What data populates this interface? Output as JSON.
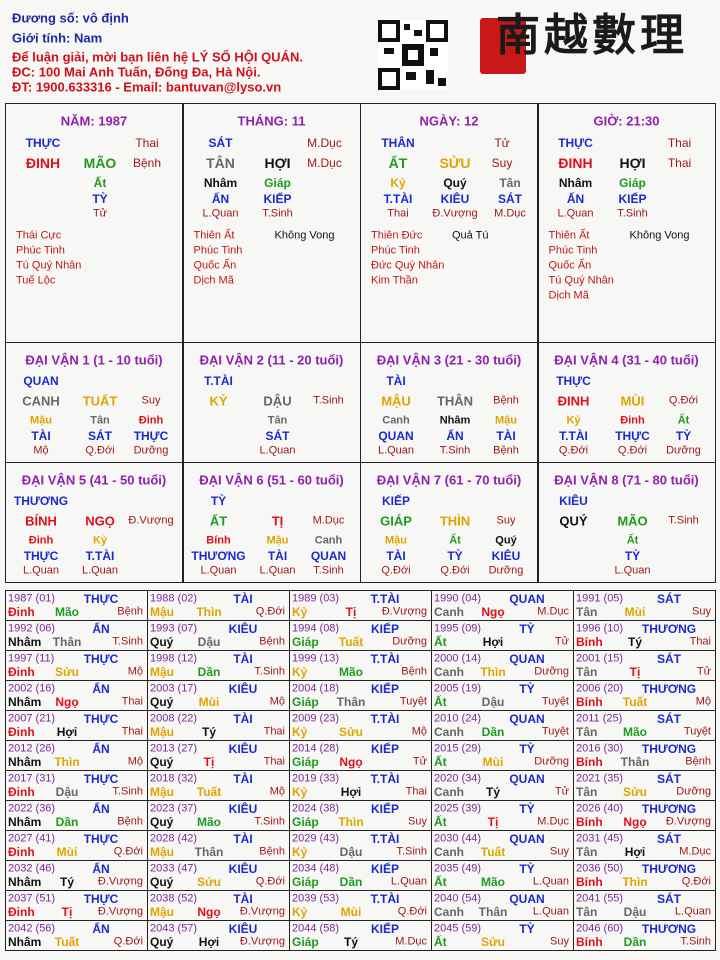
{
  "header": {
    "lines": [
      "Đương số: vô định",
      "Giới tính:   Nam",
      "Để luận giải, mời bạn liên hệ LÝ SỐ HỘI QUÁN.",
      "ĐC: 100 Mai Anh Tuấn, Đống Đa, Hà Nội.",
      "ĐT: 1900.633316 - Email: bantuvan@lyso.vn"
    ],
    "line_colors": [
      "#1a2aa0",
      "#1a2aa0",
      "#d0101a",
      "#d0101a",
      "#d0101a"
    ],
    "logo": "南越數理"
  },
  "colors": {
    "giáp": "#1e9a1e",
    "ất": "#1e9a1e",
    "dần": "#1e9a1e",
    "mão": "#1e9a1e",
    "bính": "#e0101a",
    "đinh": "#e0101a",
    "tị": "#e0101a",
    "ngọ": "#e0101a",
    "mậu": "#e0a400",
    "kỷ": "#e0a400",
    "thìn": "#e0a400",
    "tuất": "#e0a400",
    "sửu": "#e0a400",
    "mùi": "#e0a400",
    "canh": "#666666",
    "tân": "#666666",
    "thân": "#666666",
    "dậu": "#666666",
    "nhâm": "#111111",
    "quý": "#111111",
    "tý": "#111111",
    "hợi": "#111111"
  },
  "pillars": [
    {
      "title": "NĂM: 1987",
      "god": "THỰC",
      "god_state": "Thai",
      "stem": "ĐINH",
      "branch": "MÃO",
      "branch_state": "Bệnh",
      "hidden": [
        {
          "stem": "Ất",
          "god": "TỲ",
          "state": "Tử"
        }
      ],
      "stars": [
        "Thái Cực",
        "Phúc Tinh",
        "Tú Quý Nhân",
        "Tuế Lộc"
      ],
      "stars_right": []
    },
    {
      "title": "THÁNG: 11",
      "god": "SÁT",
      "god_state": "M.Dục",
      "stem": "TÂN",
      "branch": "HỢI",
      "branch_state": "M.Dục",
      "hidden": [
        {
          "stem": "Nhâm",
          "god": "ẤN",
          "state": "L.Quan"
        },
        {
          "stem": "Giáp",
          "god": "KIẾP",
          "state": "T.Sinh"
        }
      ],
      "stars": [
        "Thiên Ất",
        "Phúc Tinh",
        "Quốc Ấn",
        "Dịch Mã"
      ],
      "stars_right": [
        "Không Vong"
      ]
    },
    {
      "title": "NGÀY: 12",
      "god": "THÂN",
      "god_state": "Tử",
      "stem": "ẤT",
      "branch": "SỬU",
      "branch_state": "Suy",
      "hidden": [
        {
          "stem": "Kỷ",
          "god": "T.TÀI",
          "state": "Thai"
        },
        {
          "stem": "Quý",
          "god": "KIÊU",
          "state": "Đ.Vượng"
        },
        {
          "stem": "Tân",
          "god": "SÁT",
          "state": "M.Dục"
        }
      ],
      "stars": [
        "Thiên Đức",
        "Phúc Tinh",
        "Đức Quý Nhân",
        "Kim Thần"
      ],
      "stars_right": [
        "Quả Tú"
      ]
    },
    {
      "title": "GIỜ: 21:30",
      "god": "THỰC",
      "god_state": "Thai",
      "stem": "ĐINH",
      "branch": "HỢI",
      "branch_state": "Thai",
      "hidden": [
        {
          "stem": "Nhâm",
          "god": "ẤN",
          "state": "L.Quan"
        },
        {
          "stem": "Giáp",
          "god": "KIẾP",
          "state": "T.Sinh"
        }
      ],
      "stars": [
        "Thiên Ất",
        "Phúc Tinh",
        "Quốc Ấn",
        "Tú Quý Nhân",
        "Dịch Mã"
      ],
      "stars_right": [
        "Không Vong"
      ]
    }
  ],
  "dai_van": [
    {
      "title": "ĐẠI VẬN 1 (1 - 10 tuổi)",
      "god": "QUAN",
      "stem": "CANH",
      "branch": "TUẤT",
      "state": "Suy",
      "hidden": [
        {
          "stem": "Mậu",
          "god": "TÀI",
          "state": "Mộ"
        },
        {
          "stem": "Tân",
          "god": "SÁT",
          "state": "Q.Đới"
        },
        {
          "stem": "Đinh",
          "god": "THỰC",
          "state": "Dưỡng"
        }
      ]
    },
    {
      "title": "ĐẠI VẬN 2 (11 - 20 tuổi)",
      "god": "T.TÀI",
      "stem": "KỶ",
      "branch": "DẬU",
      "state": "T.Sinh",
      "hidden": [
        {
          "stem": "Tân",
          "god": "SÁT",
          "state": "L.Quan"
        }
      ]
    },
    {
      "title": "ĐẠI VẬN 3 (21 - 30 tuổi)",
      "god": "TÀI",
      "stem": "MẬU",
      "branch": "THÂN",
      "state": "Bệnh",
      "hidden": [
        {
          "stem": "Canh",
          "god": "QUAN",
          "state": "L.Quan"
        },
        {
          "stem": "Nhâm",
          "god": "ẤN",
          "state": "T.Sinh"
        },
        {
          "stem": "Mậu",
          "god": "TÀI",
          "state": "Bệnh"
        }
      ]
    },
    {
      "title": "ĐẠI VẬN 4 (31 - 40 tuổi)",
      "god": "THỰC",
      "stem": "ĐINH",
      "branch": "MÙI",
      "state": "Q.Đới",
      "hidden": [
        {
          "stem": "Kỷ",
          "god": "T.TÀI",
          "state": "Q.Đới"
        },
        {
          "stem": "Đinh",
          "god": "THỰC",
          "state": "Q.Đới"
        },
        {
          "stem": "Ất",
          "god": "TỲ",
          "state": "Dưỡng"
        }
      ]
    },
    {
      "title": "ĐẠI VẬN 5 (41 - 50 tuổi)",
      "god": "THƯƠNG",
      "stem": "BÍNH",
      "branch": "NGỌ",
      "state": "Đ.Vượng",
      "hidden": [
        {
          "stem": "Đinh",
          "god": "THỰC",
          "state": "L.Quan"
        },
        {
          "stem": "Kỷ",
          "god": "T.TÀI",
          "state": "L.Quan"
        }
      ]
    },
    {
      "title": "ĐẠI VẬN 6 (51 - 60 tuổi)",
      "god": "TỲ",
      "stem": "ẤT",
      "branch": "TỊ",
      "state": "M.Dục",
      "hidden": [
        {
          "stem": "Bính",
          "god": "THƯƠNG",
          "state": "L.Quan"
        },
        {
          "stem": "Mậu",
          "god": "TÀI",
          "state": "L.Quan"
        },
        {
          "stem": "Canh",
          "god": "QUAN",
          "state": "T.Sinh"
        }
      ]
    },
    {
      "title": "ĐẠI VẬN 7 (61 - 70 tuổi)",
      "god": "KIẾP",
      "stem": "GIÁP",
      "branch": "THÌN",
      "state": "Suy",
      "hidden": [
        {
          "stem": "Mậu",
          "god": "TÀI",
          "state": "Q.Đới"
        },
        {
          "stem": "Ất",
          "god": "TỲ",
          "state": "Q.Đới"
        },
        {
          "stem": "Quý",
          "god": "KIÊU",
          "state": "Dưỡng"
        }
      ]
    },
    {
      "title": "ĐẠI VẬN 8 (71 - 80 tuổi)",
      "god": "KIÊU",
      "stem": "QUÝ",
      "branch": "MÃO",
      "state": "T.Sinh",
      "hidden": [
        {
          "stem": "Ất",
          "god": "TỲ",
          "state": "L.Quan"
        }
      ]
    }
  ],
  "years": [
    {
      "label": "1987 (01)",
      "god": "THỰC",
      "stem": "Đinh",
      "branch": "Mão",
      "state": "Bệnh"
    },
    {
      "label": "1988 (02)",
      "god": "TÀI",
      "stem": "Mậu",
      "branch": "Thìn",
      "state": "Q.Đới"
    },
    {
      "label": "1989 (03)",
      "god": "T.TÀI",
      "stem": "Kỷ",
      "branch": "Tị",
      "state": "Đ.Vượng"
    },
    {
      "label": "1990 (04)",
      "god": "QUAN",
      "stem": "Canh",
      "branch": "Ngọ",
      "state": "M.Dục"
    },
    {
      "label": "1991 (05)",
      "god": "SÁT",
      "stem": "Tân",
      "branch": "Mùi",
      "state": "Suy"
    },
    {
      "label": "1992 (06)",
      "god": "ẤN",
      "stem": "Nhâm",
      "branch": "Thân",
      "state": "T.Sinh"
    },
    {
      "label": "1993 (07)",
      "god": "KIÊU",
      "stem": "Quý",
      "branch": "Dậu",
      "state": "Bệnh"
    },
    {
      "label": "1994 (08)",
      "god": "KIẾP",
      "stem": "Giáp",
      "branch": "Tuất",
      "state": "Dưỡng"
    },
    {
      "label": "1995 (09)",
      "god": "TỲ",
      "stem": "Ất",
      "branch": "Hợi",
      "state": "Tử"
    },
    {
      "label": "1996 (10)",
      "god": "THƯƠNG",
      "stem": "Bính",
      "branch": "Tý",
      "state": "Thai"
    },
    {
      "label": "1997 (11)",
      "god": "THỰC",
      "stem": "Đinh",
      "branch": "Sửu",
      "state": "Mộ"
    },
    {
      "label": "1998 (12)",
      "god": "TÀI",
      "stem": "Mậu",
      "branch": "Dần",
      "state": "T.Sinh"
    },
    {
      "label": "1999 (13)",
      "god": "T.TÀI",
      "stem": "Kỷ",
      "branch": "Mão",
      "state": "Bệnh"
    },
    {
      "label": "2000 (14)",
      "god": "QUAN",
      "stem": "Canh",
      "branch": "Thìn",
      "state": "Dưỡng"
    },
    {
      "label": "2001 (15)",
      "god": "SÁT",
      "stem": "Tân",
      "branch": "Tị",
      "state": "Tử"
    },
    {
      "label": "2002 (16)",
      "god": "ẤN",
      "stem": "Nhâm",
      "branch": "Ngọ",
      "state": "Thai"
    },
    {
      "label": "2003 (17)",
      "god": "KIÊU",
      "stem": "Quý",
      "branch": "Mùi",
      "state": "Mộ"
    },
    {
      "label": "2004 (18)",
      "god": "KIẾP",
      "stem": "Giáp",
      "branch": "Thân",
      "state": "Tuyệt"
    },
    {
      "label": "2005 (19)",
      "god": "TỲ",
      "stem": "Ất",
      "branch": "Dậu",
      "state": "Tuyệt"
    },
    {
      "label": "2006 (20)",
      "god": "THƯƠNG",
      "stem": "Bính",
      "branch": "Tuất",
      "state": "Mộ"
    },
    {
      "label": "2007 (21)",
      "god": "THỰC",
      "stem": "Đinh",
      "branch": "Hợi",
      "state": "Thai"
    },
    {
      "label": "2008 (22)",
      "god": "TÀI",
      "stem": "Mậu",
      "branch": "Tý",
      "state": "Thai"
    },
    {
      "label": "2009 (23)",
      "god": "T.TÀI",
      "stem": "Kỷ",
      "branch": "Sửu",
      "state": "Mộ"
    },
    {
      "label": "2010 (24)",
      "god": "QUAN",
      "stem": "Canh",
      "branch": "Dần",
      "state": "Tuyệt"
    },
    {
      "label": "2011 (25)",
      "god": "SÁT",
      "stem": "Tân",
      "branch": "Mão",
      "state": "Tuyệt"
    },
    {
      "label": "2012 (26)",
      "god": "ẤN",
      "stem": "Nhâm",
      "branch": "Thìn",
      "state": "Mộ"
    },
    {
      "label": "2013 (27)",
      "god": "KIÊU",
      "stem": "Quý",
      "branch": "Tị",
      "state": "Thai"
    },
    {
      "label": "2014 (28)",
      "god": "KIẾP",
      "stem": "Giáp",
      "branch": "Ngọ",
      "state": "Tử"
    },
    {
      "label": "2015 (29)",
      "god": "TỲ",
      "stem": "Ất",
      "branch": "Mùi",
      "state": "Dưỡng"
    },
    {
      "label": "2016 (30)",
      "god": "THƯƠNG",
      "stem": "Bính",
      "branch": "Thân",
      "state": "Bệnh"
    },
    {
      "label": "2017 (31)",
      "god": "THỰC",
      "stem": "Đinh",
      "branch": "Dậu",
      "state": "T.Sinh"
    },
    {
      "label": "2018 (32)",
      "god": "TÀI",
      "stem": "Mậu",
      "branch": "Tuất",
      "state": "Mộ"
    },
    {
      "label": "2019 (33)",
      "god": "T.TÀI",
      "stem": "Kỷ",
      "branch": "Hợi",
      "state": "Thai"
    },
    {
      "label": "2020 (34)",
      "god": "QUAN",
      "stem": "Canh",
      "branch": "Tý",
      "state": "Tử"
    },
    {
      "label": "2021 (35)",
      "god": "SÁT",
      "stem": "Tân",
      "branch": "Sửu",
      "state": "Dưỡng"
    },
    {
      "label": "2022 (36)",
      "god": "ẤN",
      "stem": "Nhâm",
      "branch": "Dần",
      "state": "Bệnh"
    },
    {
      "label": "2023 (37)",
      "god": "KIÊU",
      "stem": "Quý",
      "branch": "Mão",
      "state": "T.Sinh"
    },
    {
      "label": "2024 (38)",
      "god": "KIẾP",
      "stem": "Giáp",
      "branch": "Thìn",
      "state": "Suy"
    },
    {
      "label": "2025 (39)",
      "god": "TỲ",
      "stem": "Ất",
      "branch": "Tị",
      "state": "M.Dục"
    },
    {
      "label": "2026 (40)",
      "god": "THƯƠNG",
      "stem": "Bính",
      "branch": "Ngọ",
      "state": "Đ.Vượng"
    },
    {
      "label": "2027 (41)",
      "god": "THỰC",
      "stem": "Đinh",
      "branch": "Mùi",
      "state": "Q.Đới"
    },
    {
      "label": "2028 (42)",
      "god": "TÀI",
      "stem": "Mậu",
      "branch": "Thân",
      "state": "Bệnh"
    },
    {
      "label": "2029 (43)",
      "god": "T.TÀI",
      "stem": "Kỷ",
      "branch": "Dậu",
      "state": "T.Sinh"
    },
    {
      "label": "2030 (44)",
      "god": "QUAN",
      "stem": "Canh",
      "branch": "Tuất",
      "state": "Suy"
    },
    {
      "label": "2031 (45)",
      "god": "SÁT",
      "stem": "Tân",
      "branch": "Hợi",
      "state": "M.Dục"
    },
    {
      "label": "2032 (46)",
      "god": "ẤN",
      "stem": "Nhâm",
      "branch": "Tý",
      "state": "Đ.Vượng"
    },
    {
      "label": "2033 (47)",
      "god": "KIÊU",
      "stem": "Quý",
      "branch": "Sửu",
      "state": "Q.Đới"
    },
    {
      "label": "2034 (48)",
      "god": "KIẾP",
      "stem": "Giáp",
      "branch": "Dần",
      "state": "L.Quan"
    },
    {
      "label": "2035 (49)",
      "god": "TỲ",
      "stem": "Ất",
      "branch": "Mão",
      "state": "L.Quan"
    },
    {
      "label": "2036 (50)",
      "god": "THƯƠNG",
      "stem": "Bính",
      "branch": "Thìn",
      "state": "Q.Đới"
    },
    {
      "label": "2037 (51)",
      "god": "THỰC",
      "stem": "Đinh",
      "branch": "Tị",
      "state": "Đ.Vượng"
    },
    {
      "label": "2038 (52)",
      "god": "TÀI",
      "stem": "Mậu",
      "branch": "Ngọ",
      "state": "Đ.Vượng"
    },
    {
      "label": "2039 (53)",
      "god": "T.TÀI",
      "stem": "Kỷ",
      "branch": "Mùi",
      "state": "Q.Đới"
    },
    {
      "label": "2040 (54)",
      "god": "QUAN",
      "stem": "Canh",
      "branch": "Thân",
      "state": "L.Quan"
    },
    {
      "label": "2041 (55)",
      "god": "SÁT",
      "stem": "Tân",
      "branch": "Dậu",
      "state": "L.Quan"
    },
    {
      "label": "2042 (56)",
      "god": "ẤN",
      "stem": "Nhâm",
      "branch": "Tuất",
      "state": "Q.Đới"
    },
    {
      "label": "2043 (57)",
      "god": "KIÊU",
      "stem": "Quý",
      "branch": "Hợi",
      "state": "Đ.Vượng"
    },
    {
      "label": "2044 (58)",
      "god": "KIẾP",
      "stem": "Giáp",
      "branch": "Tý",
      "state": "M.Dục"
    },
    {
      "label": "2045 (59)",
      "god": "TỲ",
      "stem": "Ất",
      "branch": "Sửu",
      "state": "Suy"
    },
    {
      "label": "2046 (60)",
      "god": "THƯƠNG",
      "stem": "Bính",
      "branch": "Dần",
      "state": "T.Sinh"
    }
  ]
}
